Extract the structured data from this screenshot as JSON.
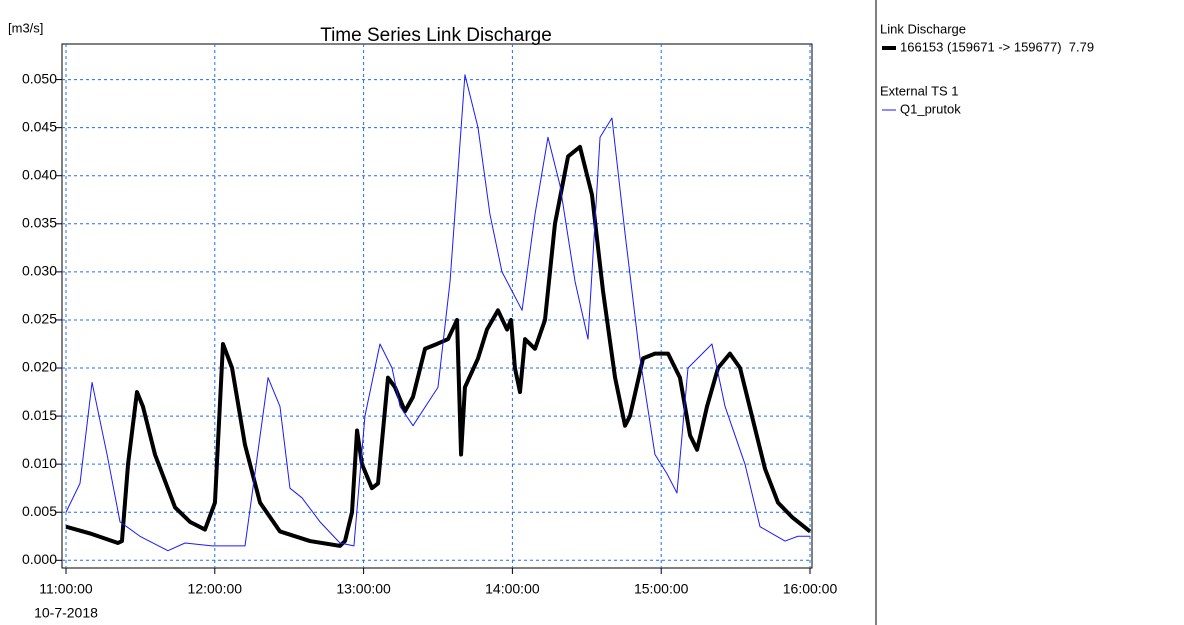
{
  "chart_data": {
    "type": "line",
    "title": "Time Series Link Discharge",
    "y_label": "[m3/s]",
    "x_date_label": "10-7-2018",
    "xlim": [
      11,
      16
    ],
    "ylim": [
      -0.0008,
      0.0537
    ],
    "xticks": [
      {
        "value": 11,
        "label": "11:00:00"
      },
      {
        "value": 12,
        "label": "12:00:00"
      },
      {
        "value": 13,
        "label": "13:00:00"
      },
      {
        "value": 14,
        "label": "14:00:00"
      },
      {
        "value": 15,
        "label": "15:00:00"
      },
      {
        "value": 16,
        "label": "16:00:00"
      }
    ],
    "yticks": [
      {
        "value": 0,
        "label": "0.000"
      },
      0.005,
      {
        "value": 0.01,
        "label": "0.010"
      },
      0.015,
      {
        "value": 0.02,
        "label": "0.020"
      },
      0.025,
      {
        "value": 0.03,
        "label": "0.030"
      },
      0.035,
      {
        "value": 0.04,
        "label": "0.040"
      },
      0.045,
      {
        "value": 0.05,
        "label": "0.050"
      }
    ],
    "grid": true,
    "series": [
      {
        "group": "Link Discharge",
        "name": "166153 (159671 -> 159677)  7.79",
        "color": "#000000",
        "width": 4,
        "x": [
          11.0,
          11.161,
          11.349,
          11.376,
          11.417,
          11.477,
          11.517,
          11.598,
          11.733,
          11.833,
          11.934,
          12.001,
          12.055,
          12.116,
          12.203,
          12.304,
          12.438,
          12.64,
          12.841,
          12.875,
          12.922,
          12.956,
          12.989,
          13.056,
          13.097,
          13.164,
          13.211,
          13.278,
          13.332,
          13.413,
          13.493,
          13.567,
          13.628,
          13.655,
          13.681,
          13.769,
          13.829,
          13.903,
          13.964,
          13.991,
          14.017,
          14.051,
          14.085,
          14.152,
          14.219,
          14.286,
          14.374,
          14.454,
          14.535,
          14.609,
          14.69,
          14.757,
          14.79,
          14.878,
          14.958,
          15.046,
          15.126,
          15.194,
          15.241,
          15.308,
          15.382,
          15.462,
          15.53,
          15.61,
          15.698,
          15.785,
          15.879,
          16.0
        ],
        "values": [
          0.0035,
          0.0028,
          0.0018,
          0.002,
          0.01,
          0.0175,
          0.016,
          0.011,
          0.0055,
          0.004,
          0.0032,
          0.006,
          0.0225,
          0.02,
          0.012,
          0.006,
          0.003,
          0.002,
          0.0015,
          0.002,
          0.005,
          0.0135,
          0.01,
          0.0075,
          0.008,
          0.019,
          0.018,
          0.0155,
          0.017,
          0.022,
          0.0225,
          0.023,
          0.025,
          0.011,
          0.018,
          0.021,
          0.024,
          0.026,
          0.024,
          0.025,
          0.02,
          0.0175,
          0.023,
          0.022,
          0.025,
          0.035,
          0.042,
          0.043,
          0.038,
          0.028,
          0.019,
          0.014,
          0.015,
          0.021,
          0.0215,
          0.0215,
          0.019,
          0.013,
          0.0115,
          0.016,
          0.02,
          0.0215,
          0.02,
          0.015,
          0.0095,
          0.006,
          0.0045,
          0.003
        ]
      },
      {
        "group": "External TS 1",
        "name": "Q1_prutok",
        "color": "#1a1aff",
        "width": 1,
        "x": [
          11.0,
          11.094,
          11.175,
          11.276,
          11.363,
          11.497,
          11.685,
          11.8,
          11.981,
          12.203,
          12.358,
          12.438,
          12.505,
          12.586,
          12.707,
          12.841,
          12.935,
          13.009,
          13.11,
          13.191,
          13.245,
          13.332,
          13.5,
          13.581,
          13.681,
          13.769,
          13.849,
          13.93,
          14.065,
          14.152,
          14.239,
          14.32,
          14.421,
          14.508,
          14.589,
          14.669,
          14.757,
          14.858,
          14.958,
          15.039,
          15.106,
          15.18,
          15.341,
          15.429,
          15.563,
          15.664,
          15.832,
          15.919,
          16.0
        ],
        "values": [
          0.005,
          0.008,
          0.0185,
          0.011,
          0.004,
          0.0025,
          0.001,
          0.0018,
          0.0015,
          0.0015,
          0.019,
          0.016,
          0.0075,
          0.0065,
          0.004,
          0.0018,
          0.0015,
          0.015,
          0.0225,
          0.02,
          0.016,
          0.014,
          0.018,
          0.029,
          0.0505,
          0.045,
          0.036,
          0.03,
          0.026,
          0.036,
          0.044,
          0.039,
          0.029,
          0.023,
          0.044,
          0.046,
          0.034,
          0.021,
          0.011,
          0.009,
          0.007,
          0.02,
          0.0225,
          0.016,
          0.01,
          0.0035,
          0.002,
          0.0025,
          0.0025
        ]
      }
    ]
  }
}
